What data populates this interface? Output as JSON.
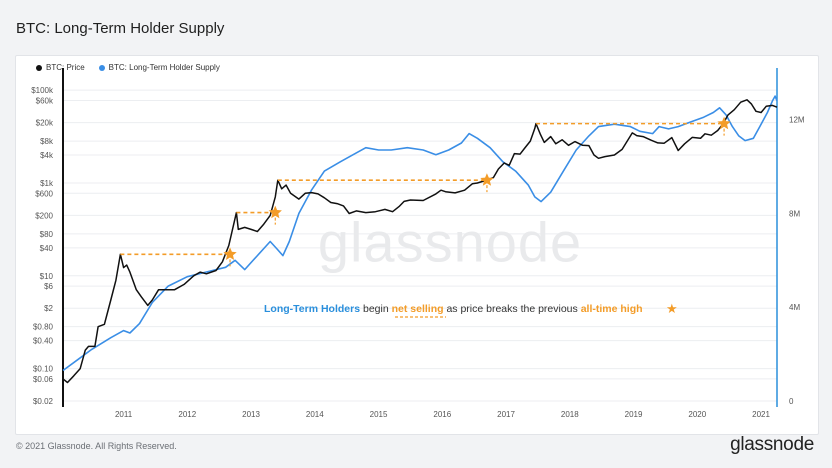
{
  "title": "BTC: Long-Term Holder Supply",
  "footer": {
    "copyright": "© 2021 Glassnode. All Rights Reserved.",
    "logo": "glassnode"
  },
  "watermark": "glassnode",
  "colors": {
    "price": "#111111",
    "supply": "#3a8ee6",
    "annotation": "#f39c28",
    "highlight": "#2a8fdc"
  },
  "chart_data": {
    "type": "line",
    "title": "BTC: Long-Term Holder Supply",
    "legend": [
      {
        "name": "BTC: Price",
        "color": "#111111"
      },
      {
        "name": "BTC: Long-Term Holder Supply",
        "color": "#3a8ee6"
      }
    ],
    "x_ticks": [
      "2011",
      "2012",
      "2013",
      "2014",
      "2015",
      "2016",
      "2017",
      "2018",
      "2019",
      "2020",
      "2021"
    ],
    "x_range": [
      2010.55,
      2021.75
    ],
    "y_left": {
      "scale": "log",
      "range": [
        0.02,
        150000
      ],
      "ticks": [
        {
          "v": 100000,
          "label": "$100k"
        },
        {
          "v": 60000,
          "label": "$60k"
        },
        {
          "v": 20000,
          "label": "$20k"
        },
        {
          "v": 8000,
          "label": "$8k"
        },
        {
          "v": 4000,
          "label": "$4k"
        },
        {
          "v": 1000,
          "label": "$1k"
        },
        {
          "v": 600,
          "label": "$600"
        },
        {
          "v": 200,
          "label": "$200"
        },
        {
          "v": 80,
          "label": "$80"
        },
        {
          "v": 40,
          "label": "$40"
        },
        {
          "v": 10,
          "label": "$10"
        },
        {
          "v": 6,
          "label": "$6"
        },
        {
          "v": 2,
          "label": "$2"
        },
        {
          "v": 0.8,
          "label": "$0.80"
        },
        {
          "v": 0.4,
          "label": "$0.40"
        },
        {
          "v": 0.1,
          "label": "$0.10"
        },
        {
          "v": 0.06,
          "label": "$0.06"
        },
        {
          "v": 0.02,
          "label": "$0.02"
        }
      ]
    },
    "y_right": {
      "scale": "linear",
      "range": [
        0,
        13600000
      ],
      "ticks": [
        {
          "v": 0,
          "label": "0"
        },
        {
          "v": 4000000,
          "label": "4M"
        },
        {
          "v": 8000000,
          "label": "8M"
        },
        {
          "v": 12000000,
          "label": "12M"
        }
      ]
    },
    "series": [
      {
        "name": "BTC: Price",
        "points": [
          [
            2010.55,
            0.06
          ],
          [
            2010.62,
            0.05
          ],
          [
            2010.72,
            0.07
          ],
          [
            2010.82,
            0.1
          ],
          [
            2010.9,
            0.25
          ],
          [
            2010.95,
            0.3
          ],
          [
            2011.05,
            0.3
          ],
          [
            2011.1,
            0.8
          ],
          [
            2011.2,
            0.9
          ],
          [
            2011.3,
            3
          ],
          [
            2011.38,
            8
          ],
          [
            2011.43,
            20
          ],
          [
            2011.45,
            29
          ],
          [
            2011.5,
            15
          ],
          [
            2011.55,
            17
          ],
          [
            2011.6,
            12
          ],
          [
            2011.7,
            5
          ],
          [
            2011.78,
            3.5
          ],
          [
            2011.88,
            2.3
          ],
          [
            2011.95,
            3
          ],
          [
            2012.05,
            5
          ],
          [
            2012.15,
            5
          ],
          [
            2012.3,
            5
          ],
          [
            2012.45,
            6.5
          ],
          [
            2012.6,
            10
          ],
          [
            2012.7,
            12
          ],
          [
            2012.8,
            11
          ],
          [
            2012.95,
            13
          ],
          [
            2013.05,
            20
          ],
          [
            2013.15,
            45
          ],
          [
            2013.27,
            230
          ],
          [
            2013.3,
            100
          ],
          [
            2013.4,
            110
          ],
          [
            2013.5,
            100
          ],
          [
            2013.6,
            90
          ],
          [
            2013.7,
            130
          ],
          [
            2013.8,
            200
          ],
          [
            2013.88,
            500
          ],
          [
            2013.92,
            1150
          ],
          [
            2013.98,
            750
          ],
          [
            2014.05,
            900
          ],
          [
            2014.12,
            600
          ],
          [
            2014.25,
            450
          ],
          [
            2014.35,
            600
          ],
          [
            2014.45,
            620
          ],
          [
            2014.55,
            580
          ],
          [
            2014.65,
            480
          ],
          [
            2014.75,
            380
          ],
          [
            2014.85,
            360
          ],
          [
            2014.95,
            320
          ],
          [
            2015.04,
            220
          ],
          [
            2015.15,
            250
          ],
          [
            2015.3,
            230
          ],
          [
            2015.45,
            240
          ],
          [
            2015.6,
            270
          ],
          [
            2015.72,
            240
          ],
          [
            2015.82,
            310
          ],
          [
            2015.9,
            400
          ],
          [
            2016.0,
            430
          ],
          [
            2016.2,
            420
          ],
          [
            2016.4,
            580
          ],
          [
            2016.48,
            700
          ],
          [
            2016.55,
            650
          ],
          [
            2016.7,
            610
          ],
          [
            2016.85,
            700
          ],
          [
            2016.97,
            960
          ],
          [
            2017.05,
            1000
          ],
          [
            2017.15,
            1100
          ],
          [
            2017.3,
            1300
          ],
          [
            2017.38,
            2000
          ],
          [
            2017.47,
            2700
          ],
          [
            2017.55,
            2400
          ],
          [
            2017.63,
            4300
          ],
          [
            2017.72,
            4200
          ],
          [
            2017.8,
            5800
          ],
          [
            2017.88,
            8000
          ],
          [
            2017.95,
            15000
          ],
          [
            2017.97,
            19000
          ],
          [
            2018.04,
            11000
          ],
          [
            2018.1,
            7500
          ],
          [
            2018.2,
            10000
          ],
          [
            2018.28,
            7000
          ],
          [
            2018.38,
            8500
          ],
          [
            2018.48,
            6500
          ],
          [
            2018.58,
            7800
          ],
          [
            2018.7,
            6500
          ],
          [
            2018.8,
            6400
          ],
          [
            2018.88,
            4000
          ],
          [
            2018.95,
            3400
          ],
          [
            2019.05,
            3700
          ],
          [
            2019.2,
            4000
          ],
          [
            2019.32,
            5300
          ],
          [
            2019.4,
            8000
          ],
          [
            2019.48,
            12000
          ],
          [
            2019.55,
            10500
          ],
          [
            2019.65,
            10000
          ],
          [
            2019.78,
            8300
          ],
          [
            2019.88,
            7300
          ],
          [
            2019.98,
            7200
          ],
          [
            2020.1,
            9500
          ],
          [
            2020.2,
            5000
          ],
          [
            2020.3,
            7000
          ],
          [
            2020.42,
            9600
          ],
          [
            2020.55,
            9200
          ],
          [
            2020.62,
            11500
          ],
          [
            2020.72,
            10700
          ],
          [
            2020.82,
            13500
          ],
          [
            2020.9,
            18500
          ],
          [
            2020.98,
            29000
          ],
          [
            2021.08,
            38000
          ],
          [
            2021.18,
            55000
          ],
          [
            2021.28,
            62000
          ],
          [
            2021.35,
            50000
          ],
          [
            2021.42,
            35000
          ],
          [
            2021.5,
            33000
          ],
          [
            2021.58,
            45000
          ],
          [
            2021.68,
            47000
          ],
          [
            2021.75,
            43000
          ]
        ]
      },
      {
        "name": "BTC: Long-Term Holder Supply",
        "points": [
          [
            2010.55,
            1300000
          ],
          [
            2010.8,
            1800000
          ],
          [
            2011.0,
            2200000
          ],
          [
            2011.3,
            2700000
          ],
          [
            2011.5,
            3000000
          ],
          [
            2011.6,
            2900000
          ],
          [
            2011.75,
            3300000
          ],
          [
            2011.95,
            4200000
          ],
          [
            2012.2,
            4900000
          ],
          [
            2012.5,
            5300000
          ],
          [
            2012.8,
            5500000
          ],
          [
            2013.1,
            5700000
          ],
          [
            2013.25,
            6000000
          ],
          [
            2013.4,
            5600000
          ],
          [
            2013.6,
            6200000
          ],
          [
            2013.8,
            6800000
          ],
          [
            2013.9,
            6500000
          ],
          [
            2014.0,
            6200000
          ],
          [
            2014.1,
            6800000
          ],
          [
            2014.25,
            8000000
          ],
          [
            2014.45,
            9000000
          ],
          [
            2014.65,
            9800000
          ],
          [
            2014.9,
            10200000
          ],
          [
            2015.1,
            10500000
          ],
          [
            2015.3,
            10800000
          ],
          [
            2015.5,
            10700000
          ],
          [
            2015.7,
            10700000
          ],
          [
            2015.95,
            10800000
          ],
          [
            2016.2,
            10700000
          ],
          [
            2016.4,
            10500000
          ],
          [
            2016.6,
            10700000
          ],
          [
            2016.8,
            11000000
          ],
          [
            2016.92,
            11400000
          ],
          [
            2017.05,
            11200000
          ],
          [
            2017.25,
            10800000
          ],
          [
            2017.45,
            10200000
          ],
          [
            2017.65,
            9800000
          ],
          [
            2017.85,
            9200000
          ],
          [
            2017.95,
            8700000
          ],
          [
            2018.05,
            8500000
          ],
          [
            2018.2,
            8900000
          ],
          [
            2018.4,
            9800000
          ],
          [
            2018.6,
            10700000
          ],
          [
            2018.8,
            11300000
          ],
          [
            2018.95,
            11700000
          ],
          [
            2019.2,
            11800000
          ],
          [
            2019.45,
            11700000
          ],
          [
            2019.6,
            11500000
          ],
          [
            2019.8,
            11400000
          ],
          [
            2019.9,
            11700000
          ],
          [
            2020.05,
            11600000
          ],
          [
            2020.2,
            11700000
          ],
          [
            2020.4,
            11900000
          ],
          [
            2020.6,
            12100000
          ],
          [
            2020.75,
            12300000
          ],
          [
            2020.85,
            12500000
          ],
          [
            2020.95,
            12200000
          ],
          [
            2021.05,
            11700000
          ],
          [
            2021.15,
            11300000
          ],
          [
            2021.25,
            11100000
          ],
          [
            2021.38,
            11200000
          ],
          [
            2021.48,
            11700000
          ],
          [
            2021.6,
            12300000
          ],
          [
            2021.68,
            12800000
          ],
          [
            2021.72,
            13000000
          ],
          [
            2021.75,
            12800000
          ]
        ]
      }
    ],
    "ath_markers": [
      {
        "from": 2011.45,
        "to": 2013.17,
        "price": 29
      },
      {
        "from": 2013.27,
        "to": 2013.88,
        "price": 230
      },
      {
        "from": 2013.92,
        "to": 2017.2,
        "price": 1150
      },
      {
        "from": 2017.97,
        "to": 2020.92,
        "price": 19000
      }
    ],
    "annotation": {
      "parts": [
        {
          "text": "Long-Term Holders",
          "style": "blue"
        },
        {
          "text": " begin ",
          "style": "normal"
        },
        {
          "text": "net selling",
          "style": "orange-underline"
        },
        {
          "text": " as price breaks the previous ",
          "style": "normal"
        },
        {
          "text": "all-time high",
          "style": "orange"
        }
      ],
      "star": "★"
    }
  }
}
